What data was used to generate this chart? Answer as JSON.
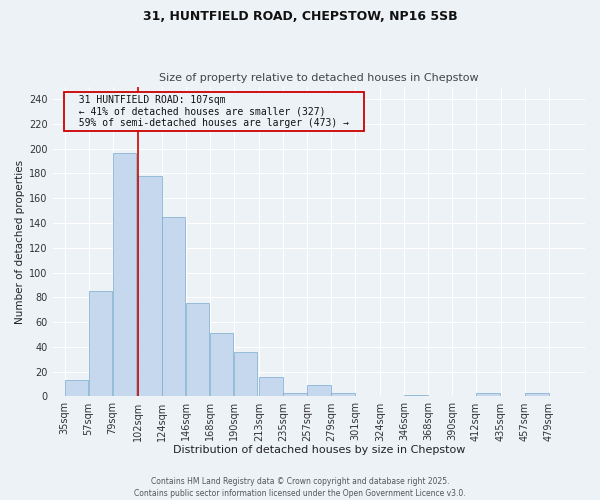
{
  "title_line1": "31, HUNTFIELD ROAD, CHEPSTOW, NP16 5SB",
  "title_line2": "Size of property relative to detached houses in Chepstow",
  "xlabel": "Distribution of detached houses by size in Chepstow",
  "ylabel": "Number of detached properties",
  "annotation_line1": "  31 HUNTFIELD ROAD: 107sqm  ",
  "annotation_line2": "  ← 41% of detached houses are smaller (327)  ",
  "annotation_line3": "  59% of semi-detached houses are larger (473) →  ",
  "bar_color": "#c5d8ed",
  "bar_edge_color": "#7aabcf",
  "redline_color": "#cc0000",
  "annotation_box_edgecolor": "#cc0000",
  "background_color": "#edf2f7",
  "grid_color": "#ffffff",
  "categories": [
    "35sqm",
    "57sqm",
    "79sqm",
    "102sqm",
    "124sqm",
    "146sqm",
    "168sqm",
    "190sqm",
    "213sqm",
    "235sqm",
    "257sqm",
    "279sqm",
    "301sqm",
    "324sqm",
    "346sqm",
    "368sqm",
    "390sqm",
    "412sqm",
    "435sqm",
    "457sqm",
    "479sqm"
  ],
  "bin_edges": [
    35,
    57,
    79,
    102,
    124,
    146,
    168,
    190,
    213,
    235,
    257,
    279,
    301,
    324,
    346,
    368,
    390,
    412,
    435,
    457,
    479
  ],
  "bin_width": 22,
  "values": [
    13,
    85,
    196,
    178,
    145,
    75,
    51,
    36,
    16,
    3,
    9,
    3,
    0,
    0,
    1,
    0,
    0,
    3,
    0,
    3,
    0
  ],
  "redline_x": 102,
  "ylim": [
    0,
    250
  ],
  "yticks": [
    0,
    20,
    40,
    60,
    80,
    100,
    120,
    140,
    160,
    180,
    200,
    220,
    240
  ],
  "title_fontsize": 9,
  "subtitle_fontsize": 8,
  "xlabel_fontsize": 8,
  "ylabel_fontsize": 7.5,
  "tick_fontsize": 7,
  "annotation_fontsize": 7,
  "footer_fontsize": 5.5,
  "footer": "Contains HM Land Registry data © Crown copyright and database right 2025.\nContains public sector information licensed under the Open Government Licence v3.0."
}
